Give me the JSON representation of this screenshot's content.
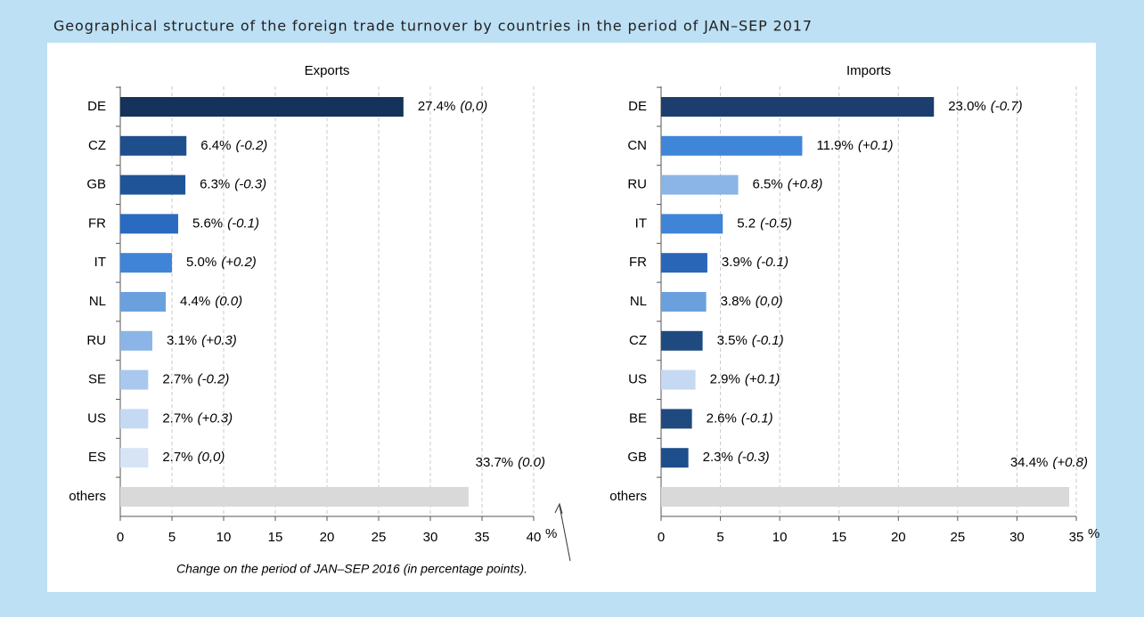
{
  "title": "Geographical structure of the foreign trade turnover by countries in the period of JAN–SEP 2017",
  "annotation": "Change on the period of JAN–SEP 2016 (in percentage points).",
  "chart_data": [
    {
      "type": "bar",
      "orientation": "horizontal",
      "title": "Exports",
      "categories": [
        "DE",
        "CZ",
        "GB",
        "FR",
        "IT",
        "NL",
        "RU",
        "SE",
        "US",
        "ES",
        "others"
      ],
      "values": [
        27.4,
        6.4,
        6.3,
        5.6,
        5.0,
        4.4,
        3.1,
        2.7,
        2.7,
        2.7,
        33.7
      ],
      "value_labels": [
        "27.4%",
        "6.4%",
        "6.3%",
        "5.6%",
        "5.0%",
        "4.4%",
        "3.1%",
        "2.7%",
        "2.7%",
        "2.7%",
        "33.7%"
      ],
      "change_labels": [
        "(0,0)",
        "(-0.2)",
        "(-0.3)",
        "(-0.1)",
        "(+0.2)",
        "(0.0)",
        "(+0.3)",
        "(-0.2)",
        "(+0.3)",
        "(0,0)",
        "(0.0)"
      ],
      "colors": [
        "#14325a",
        "#1f4e8c",
        "#1f5598",
        "#2a6ac0",
        "#3f84d6",
        "#6aa0de",
        "#8ab5e6",
        "#a9c8ee",
        "#c5d9f3",
        "#d6e4f6",
        "#d9d9d9"
      ],
      "xlim": [
        0,
        40
      ],
      "xticks": [
        0,
        5,
        10,
        15,
        20,
        25,
        30,
        35,
        40
      ],
      "xlabel": "%",
      "grid": true
    },
    {
      "type": "bar",
      "orientation": "horizontal",
      "title": "Imports",
      "categories": [
        "DE",
        "CN",
        "RU",
        "IT",
        "FR",
        "NL",
        "CZ",
        "US",
        "BE",
        "GB",
        "others"
      ],
      "values": [
        23.0,
        11.9,
        6.5,
        5.2,
        3.9,
        3.8,
        3.5,
        2.9,
        2.6,
        2.3,
        34.4
      ],
      "value_labels": [
        "23.0%",
        "11.9%",
        "6.5%",
        "5.2",
        "3.9%",
        "3.8%",
        "3.5%",
        "2.9%",
        "2.6%",
        "2.3%",
        "34.4%"
      ],
      "change_labels": [
        "(-0.7)",
        "(+0.1)",
        "(+0.8)",
        "(-0.5)",
        "(-0.1)",
        "(0,0)",
        "(-0.1)",
        "(+0.1)",
        "(-0.1)",
        "(-0.3)",
        "(+0.8)"
      ],
      "colors": [
        "#1c3d6e",
        "#3f86d8",
        "#8ab5e6",
        "#3f84d6",
        "#2a66b8",
        "#6aa0de",
        "#1f4a80",
        "#c5d9f3",
        "#1f4a80",
        "#1f4e8c",
        "#d9d9d9"
      ],
      "xlim": [
        0,
        35
      ],
      "xticks": [
        0,
        5,
        10,
        15,
        20,
        25,
        30,
        35
      ],
      "xlabel": "%",
      "grid": true
    }
  ]
}
